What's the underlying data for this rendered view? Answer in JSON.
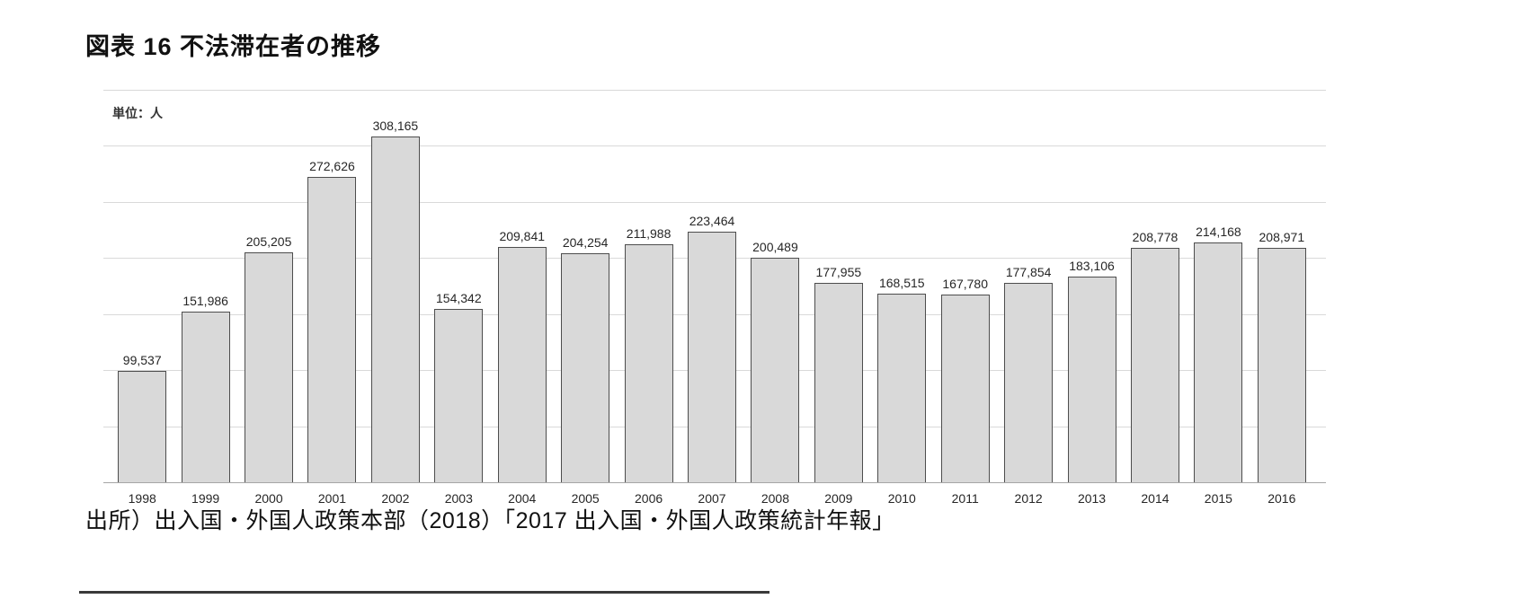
{
  "page": {
    "title": "図表 16 不法滞在者の推移",
    "source": "出所）出入国・外国人政策本部（2018）「2017 出入国・外国人政策統計年報」"
  },
  "chart": {
    "unit_label": "単位：人"
  },
  "chart_data": {
    "type": "bar",
    "title": "図表 16 不法滞在者の推移",
    "unit": "単位：人",
    "xlabel": "",
    "ylabel": "人",
    "categories": [
      "1998",
      "1999",
      "2000",
      "2001",
      "2002",
      "2003",
      "2004",
      "2005",
      "2006",
      "2007",
      "2008",
      "2009",
      "2010",
      "2011",
      "2012",
      "2013",
      "2014",
      "2015",
      "2016"
    ],
    "values": [
      99537,
      151986,
      205205,
      272626,
      308165,
      154342,
      209841,
      204254,
      211988,
      223464,
      200489,
      177955,
      168515,
      167780,
      177854,
      183106,
      208778,
      214168,
      208971
    ],
    "value_labels": [
      "99,537",
      "151,986",
      "205,205",
      "272,626",
      "308,165",
      "154,342",
      "209,841",
      "204,254",
      "211,988",
      "223,464",
      "200,489",
      "177,955",
      "168,515",
      "167,780",
      "177,854",
      "183,106",
      "208,778",
      "214,168",
      "208,971"
    ],
    "ylim": [
      0,
      350000
    ],
    "gridline_interval": 50000,
    "grid": "horizontal",
    "legend": "none",
    "bar_fill": "#d9d9d9",
    "bar_border": "#4d4d4d",
    "gridline_color": "#d9d9d9",
    "axis_color": "#a6a6a6"
  }
}
